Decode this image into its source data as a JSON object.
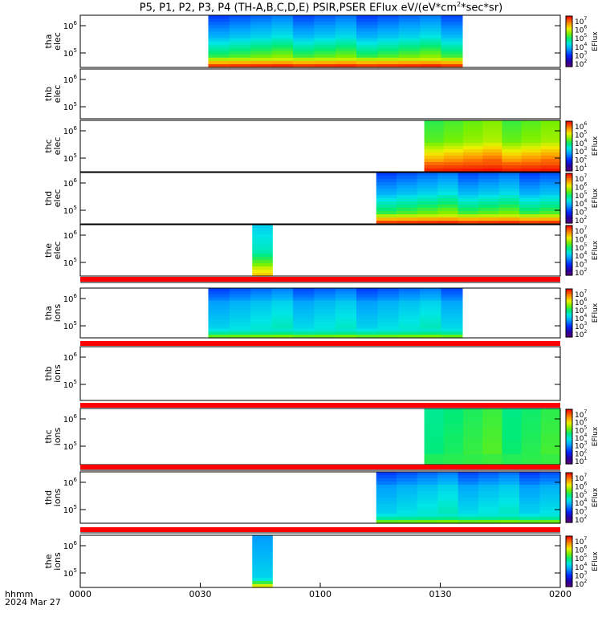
{
  "chart_data": {
    "type": "heatmap",
    "title": "P5, P1, P2, P3, P4 (TH-A,B,C,D,E) PSIR,PSER EFlux eV/(eV*cm2*sec*sr)",
    "title_parts": {
      "pre": "P5, P1, P2, P3, P4 (TH-A,B,C,D,E) PSIR,PSER EFlux eV/(eV*cm",
      "sup": "2",
      "post": "*sec*sr)"
    },
    "x_axis": {
      "label_lines": [
        "hhmm",
        "2024 Mar 27"
      ],
      "tick_labels": [
        "0000",
        "0030",
        "0100",
        "0130",
        "0200"
      ],
      "range_minutes": [
        0,
        120
      ]
    },
    "colorbar_label": "EFlux",
    "panels": [
      {
        "label": [
          "tha",
          "elec"
        ],
        "y_ticks": [
          "10^5",
          "10^6"
        ],
        "cbar_ticks": [
          "10^2",
          "10^3",
          "10^4",
          "10^5",
          "10^6",
          "10^7"
        ],
        "data_start_min": 32,
        "data_end_min": 95.5,
        "profile": "elec_mixed",
        "status_bar": false
      },
      {
        "label": [
          "thb",
          "elec"
        ],
        "y_ticks": [
          "10^5",
          "10^6"
        ],
        "cbar_ticks": [],
        "data_start_min": null,
        "data_end_min": null,
        "profile": "none",
        "status_bar": false
      },
      {
        "label": [
          "thc",
          "elec"
        ],
        "y_ticks": [
          "10^5",
          "10^6"
        ],
        "cbar_ticks": [
          "10^1",
          "10^2",
          "10^3",
          "10^4",
          "10^5",
          "10^6"
        ],
        "data_start_min": 86,
        "data_end_min": 120,
        "profile": "elec_hot",
        "status_bar": false
      },
      {
        "label": [
          "thd",
          "elec"
        ],
        "y_ticks": [
          "10^5",
          "10^6"
        ],
        "cbar_ticks": [
          "10^2",
          "10^3",
          "10^4",
          "10^5",
          "10^6",
          "10^7"
        ],
        "data_start_min": 74,
        "data_end_min": 120,
        "profile": "elec_mixed",
        "status_bar": false
      },
      {
        "label": [
          "the",
          "elec"
        ],
        "y_ticks": [
          "10^5",
          "10^6"
        ],
        "cbar_ticks": [
          "10^2",
          "10^3",
          "10^4",
          "10^5",
          "10^6",
          "10^7"
        ],
        "data_start_min": 43,
        "data_end_min": 48,
        "profile": "elec_narrow",
        "status_bar": true
      },
      {
        "label": [
          "tha",
          "ions"
        ],
        "y_ticks": [
          "10^5",
          "10^6"
        ],
        "cbar_ticks": [
          "10^2",
          "10^3",
          "10^4",
          "10^5",
          "10^6",
          "10^7"
        ],
        "data_start_min": 32,
        "data_end_min": 95.5,
        "profile": "ions_cyan",
        "status_bar": true
      },
      {
        "label": [
          "thb",
          "ions"
        ],
        "y_ticks": [
          "10^5",
          "10^6"
        ],
        "cbar_ticks": [],
        "data_start_min": null,
        "data_end_min": null,
        "profile": "none",
        "status_bar": true
      },
      {
        "label": [
          "thc",
          "ions"
        ],
        "y_ticks": [
          "10^5",
          "10^6"
        ],
        "cbar_ticks": [
          "10^1",
          "10^2",
          "10^3",
          "10^4",
          "10^5",
          "10^6",
          "10^7"
        ],
        "data_start_min": 86,
        "data_end_min": 120,
        "profile": "ions_green",
        "status_bar": true
      },
      {
        "label": [
          "thd",
          "ions"
        ],
        "y_ticks": [
          "10^5",
          "10^6"
        ],
        "cbar_ticks": [
          "10^2",
          "10^3",
          "10^4",
          "10^5",
          "10^6",
          "10^7"
        ],
        "data_start_min": 74,
        "data_end_min": 120,
        "profile": "ions_cyan",
        "status_bar": true
      },
      {
        "label": [
          "the",
          "ions"
        ],
        "y_ticks": [
          "10^5",
          "10^6"
        ],
        "cbar_ticks": [
          "10^2",
          "10^3",
          "10^4",
          "10^5",
          "10^6",
          "10^7"
        ],
        "data_start_min": 43,
        "data_end_min": 48,
        "profile": "ions_narrow",
        "status_bar": false
      }
    ],
    "colors": {
      "status_bar": "#ff0000",
      "frame": "#000000"
    }
  }
}
